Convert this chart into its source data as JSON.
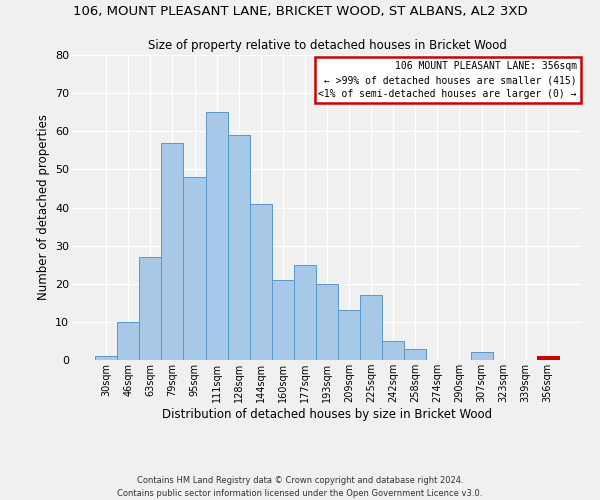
{
  "title": "106, MOUNT PLEASANT LANE, BRICKET WOOD, ST ALBANS, AL2 3XD",
  "subtitle": "Size of property relative to detached houses in Bricket Wood",
  "xlabel": "Distribution of detached houses by size in Bricket Wood",
  "ylabel": "Number of detached properties",
  "bar_color": "#a8c8e8",
  "bar_edge_color": "#5599cc",
  "categories": [
    "30sqm",
    "46sqm",
    "63sqm",
    "79sqm",
    "95sqm",
    "111sqm",
    "128sqm",
    "144sqm",
    "160sqm",
    "177sqm",
    "193sqm",
    "209sqm",
    "225sqm",
    "242sqm",
    "258sqm",
    "274sqm",
    "290sqm",
    "307sqm",
    "323sqm",
    "339sqm",
    "356sqm"
  ],
  "values": [
    1,
    10,
    27,
    57,
    48,
    65,
    59,
    41,
    21,
    25,
    20,
    13,
    17,
    5,
    3,
    0,
    0,
    2,
    0,
    0,
    1
  ],
  "ylim": [
    0,
    80
  ],
  "yticks": [
    0,
    10,
    20,
    30,
    40,
    50,
    60,
    70,
    80
  ],
  "annotation_box_text_line1": "106 MOUNT PLEASANT LANE: 356sqm",
  "annotation_box_text_line2": "← >99% of detached houses are smaller (415)",
  "annotation_box_text_line3": "<1% of semi-detached houses are larger (0) →",
  "annotation_box_edge_color": "#cc0000",
  "highlight_bar_index": 20,
  "highlight_bar_color": "#cc0000",
  "footer_line1": "Contains HM Land Registry data © Crown copyright and database right 2024.",
  "footer_line2": "Contains public sector information licensed under the Open Government Licence v3.0.",
  "background_color": "#f0f0f0",
  "grid_color": "#ffffff"
}
